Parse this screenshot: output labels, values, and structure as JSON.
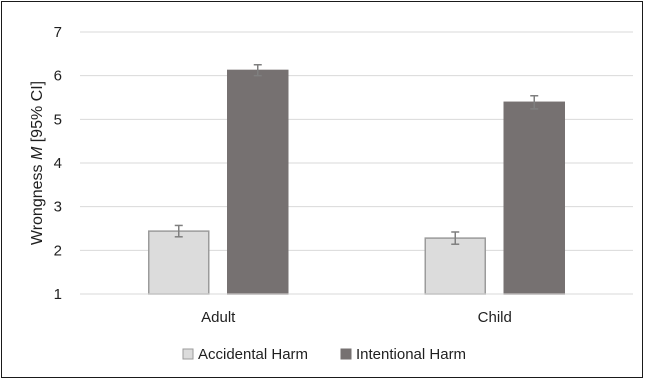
{
  "chart_data": {
    "type": "bar",
    "categories": [
      "Adult",
      "Child"
    ],
    "series": [
      {
        "name": "Accidental Harm",
        "values": [
          2.44,
          2.28
        ],
        "ci": [
          [
            2.31,
            2.57
          ],
          [
            2.14,
            2.42
          ]
        ],
        "color": "#dcdcdc",
        "edge": "#9b9b9b"
      },
      {
        "name": "Intentional Harm",
        "values": [
          6.12,
          5.39
        ],
        "ci": [
          [
            6.0,
            6.25
          ],
          [
            5.24,
            5.54
          ]
        ],
        "color": "#767171",
        "edge": "#767171"
      }
    ],
    "ylabel_prefix": "Wrongness ",
    "ylabel_italic": "M",
    "ylabel_suffix": " [95% CI]",
    "ylim": [
      1,
      7
    ],
    "yticks": [
      "1",
      "2",
      "3",
      "4",
      "5",
      "6",
      "7"
    ],
    "grid": true,
    "legend": "bottom",
    "error_bar_color": "#7f7f7f",
    "grid_color": "#d9d9d9"
  }
}
